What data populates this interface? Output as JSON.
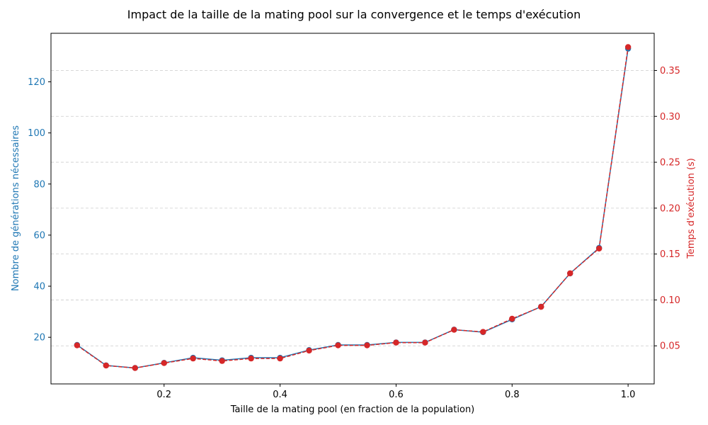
{
  "chart_data": {
    "type": "line",
    "title": "Impact de la taille de la mating pool sur la convergence et le temps d'exécution",
    "xlabel": "Taille de la mating pool (en fraction de la population)",
    "ylabel_left": "Nombre de générations nécessaires",
    "ylabel_right": "Temps d'exécution (s)",
    "xlim": [
      0.005,
      1.045
    ],
    "ylim_left": [
      1.75,
      139
    ],
    "ylim_right": [
      0.0085,
      0.3905
    ],
    "x_ticks": [
      "0.2",
      "0.4",
      "0.6",
      "0.8",
      "1.0"
    ],
    "y_left_ticks": [
      "20",
      "40",
      "60",
      "80",
      "100",
      "120"
    ],
    "y_right_ticks": [
      "0.05",
      "0.10",
      "0.15",
      "0.20",
      "0.25",
      "0.30",
      "0.35"
    ],
    "grid": "horizontal, right axis",
    "left_color": "#1f77b4",
    "right_color": "#d62728",
    "x": [
      0.05,
      0.1,
      0.15,
      0.2,
      0.25,
      0.3,
      0.35,
      0.4,
      0.45,
      0.5,
      0.55,
      0.6,
      0.65,
      0.7,
      0.75,
      0.8,
      0.85,
      0.9,
      0.95,
      1.0
    ],
    "series": [
      {
        "axis": "left",
        "color": "#1f77b4",
        "values": [
          17,
          9,
          8,
          10,
          12,
          11,
          12,
          12,
          15,
          17,
          17,
          18,
          18,
          23,
          22,
          27,
          32,
          45,
          55,
          133
        ]
      },
      {
        "axis": "right",
        "color": "#d62728",
        "values": [
          0.0505,
          0.0285,
          0.0258,
          0.0312,
          0.0362,
          0.0335,
          0.0362,
          0.0362,
          0.0448,
          0.0505,
          0.0505,
          0.0535,
          0.0535,
          0.0675,
          0.0652,
          0.0795,
          0.0925,
          0.129,
          0.156,
          0.3755
        ]
      }
    ]
  }
}
